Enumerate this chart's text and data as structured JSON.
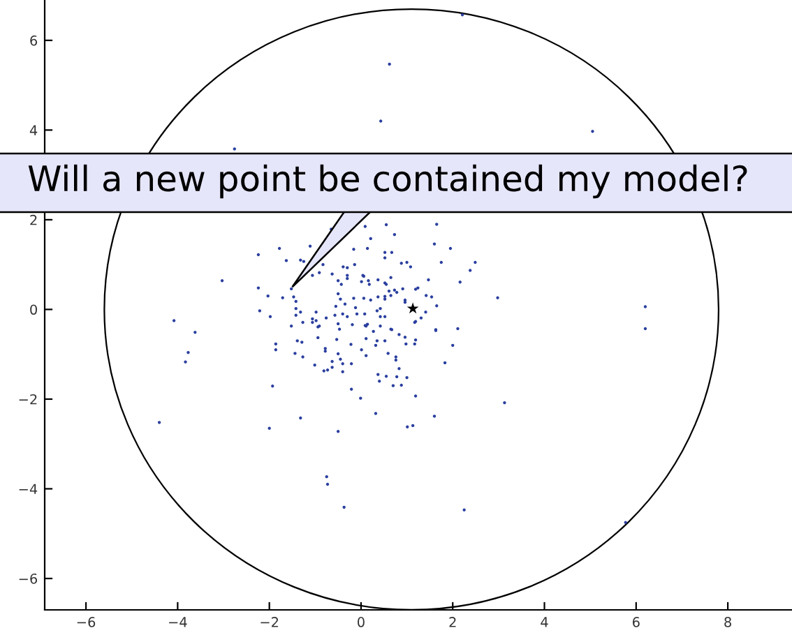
{
  "chart_data": {
    "type": "scatter",
    "xlim": [
      -6.9,
      9.4
    ],
    "ylim": [
      -6.7,
      6.9
    ],
    "xticks": [
      -6,
      -4,
      -2,
      0,
      2,
      4,
      6,
      8
    ],
    "yticks": [
      -6,
      -4,
      -2,
      0,
      2,
      4,
      6
    ],
    "grid": false,
    "legend": false,
    "series": [
      {
        "color": "#2a3f9f",
        "marker": "circle",
        "x": [
          -2.24,
          -1.78,
          -1.11,
          -0.65,
          -1.32,
          -1.25,
          -1.63,
          -3.03,
          -2.24,
          -1.52,
          -2.03,
          -1.71,
          -1.47,
          -1.42,
          -2.21,
          -1.98,
          -1.42,
          -1.42,
          -1.32,
          -1.52,
          -1.06,
          -0.91,
          -1.06,
          -0.83,
          -0.63,
          -0.5,
          -0.43,
          -0.39,
          -0.3,
          -0.3,
          -0.3,
          -0.14,
          -0.16,
          0.09,
          0.14,
          0.21,
          0.55,
          0.52,
          0.52,
          0.06,
          0.18,
          0.37,
          0.52,
          0.61,
          -0.5,
          -0.45,
          -0.55,
          -0.35,
          -0.16,
          -0.12,
          0.06,
          0.21,
          0.37,
          0.52,
          0.42,
          -0.76,
          -0.57,
          -0.4,
          -0.3,
          -0.09,
          0.08,
          0.14,
          -0.19,
          -0.5,
          -0.98,
          -0.94,
          -1.27,
          0.73,
          1.65,
          1.6,
          1.95,
          0.67,
          0.88,
          1.0,
          1.08,
          1.75,
          2.49,
          2.38,
          2.16,
          1.47,
          2.98,
          1.19,
          1.24,
          1.42,
          1.54,
          1.65,
          0.96,
          1.41,
          1.31,
          1.19,
          1.63,
          2.11,
          0.65,
          0.55,
          0.73,
          0.91,
          0.78,
          0.96,
          0.52,
          0.65,
          0.35,
          0.42,
          0.52,
          0.11,
          0.42,
          0.67,
          0.04,
          0.16,
          0.01,
          -1.06,
          -0.98,
          -0.91,
          -3.62,
          -1.86,
          -1.86,
          -1.39,
          -1.29,
          -1.44,
          -1.27,
          -0.94,
          -0.78,
          -0.78,
          -1.01,
          -0.81,
          -0.73,
          -0.63,
          -0.63,
          -0.5,
          -0.45,
          -0.4,
          -0.4,
          -0.21,
          -0.53,
          -0.22,
          0.01,
          0.11,
          -0.47,
          0.09,
          0.27,
          0.11,
          0.35,
          0.32,
          0.52,
          0.59,
          0.65,
          0.37,
          0.55,
          0.4,
          -0.21,
          -0.01,
          0.32,
          -0.5,
          -1.93,
          -1.32,
          -2.0,
          1.17,
          1.63,
          2.0,
          1.83,
          1.19,
          1.17,
          0.96,
          0.98,
          0.83,
          0.76,
          0.76,
          0.83,
          1.0,
          0.88,
          0.7,
          0.78,
          1.19,
          1.6,
          1.01,
          1.13,
          3.13,
          2.21,
          0.62,
          0.43,
          5.05,
          -2.76,
          -4.4,
          -0.75,
          -0.73,
          -0.37,
          2.25,
          5.77,
          6.2,
          6.2,
          -4.08,
          -3.77,
          -3.83
        ],
        "values": [
          1.22,
          1.36,
          1.41,
          1.79,
          1.1,
          1.07,
          1.09,
          0.64,
          0.48,
          0.46,
          0.3,
          0.26,
          0.28,
          0.18,
          -0.03,
          -0.16,
          0.02,
          -0.13,
          -0.06,
          -0.37,
          -0.21,
          0.82,
          0.76,
          1.0,
          0.79,
          0.64,
          0.56,
          0.95,
          0.93,
          0.76,
          0.69,
          1.0,
          1.34,
          1.85,
          1.36,
          1.58,
          1.89,
          1.27,
          1.15,
          0.74,
          0.56,
          0.66,
          0.59,
          0.41,
          0.35,
          0.23,
          0.07,
          0.12,
          0.25,
          0.04,
          0.25,
          0.21,
          0.28,
          0.23,
          0.02,
          -0.19,
          -0.13,
          -0.1,
          -0.16,
          -0.1,
          -0.1,
          -0.33,
          -0.34,
          -0.32,
          -0.06,
          -0.39,
          -0.29,
          1.67,
          1.9,
          1.46,
          1.36,
          1.27,
          1.03,
          1.05,
          0.95,
          1.05,
          1.05,
          0.87,
          0.61,
          0.66,
          0.26,
          0.45,
          0.48,
          0.31,
          0.28,
          0.08,
          0.16,
          -0.06,
          -0.19,
          -0.27,
          -0.45,
          -0.43,
          0.71,
          0.56,
          0.43,
          0.46,
          0.38,
          0.21,
          0.29,
          0.31,
          -0.03,
          -0.16,
          -0.16,
          -0.37,
          -0.37,
          -0.45,
          0.76,
          0.64,
          0.62,
          -0.29,
          -0.25,
          -0.37,
          -0.51,
          -0.77,
          -0.9,
          -0.7,
          -0.73,
          -0.98,
          -1.06,
          -0.63,
          -0.87,
          -0.93,
          -1.24,
          -1.37,
          -1.35,
          -1.16,
          -1.29,
          -0.99,
          -1.11,
          -1.21,
          -1.39,
          -1.21,
          -0.67,
          -0.78,
          -0.9,
          -1.03,
          -0.44,
          -0.36,
          -0.49,
          -0.65,
          -0.7,
          -0.8,
          -0.7,
          -0.98,
          -0.44,
          -1.45,
          -1.49,
          -1.6,
          -1.78,
          -1.98,
          -2.32,
          -2.72,
          -1.71,
          -2.42,
          -2.65,
          -0.29,
          -0.47,
          -0.8,
          -1.19,
          -0.68,
          -0.77,
          -0.62,
          -0.77,
          -0.56,
          -1.06,
          -1.13,
          -1.32,
          -1.52,
          -1.69,
          -1.7,
          -1.5,
          -1.93,
          -2.38,
          -2.62,
          -2.59,
          -2.08,
          6.57,
          5.47,
          4.2,
          3.97,
          3.58,
          -2.52,
          -3.73,
          -3.9,
          -4.41,
          -4.47,
          -4.75,
          0.06,
          -0.43,
          -0.25,
          -0.96,
          -1.17
        ]
      },
      {
        "color": "#000000",
        "marker": "star",
        "x": [
          1.13
        ],
        "values": [
          0.02
        ]
      }
    ],
    "annotations": [
      {
        "text": "Will a new point be contained my model?",
        "x": -1.5,
        "y": 0.5
      }
    ]
  }
}
